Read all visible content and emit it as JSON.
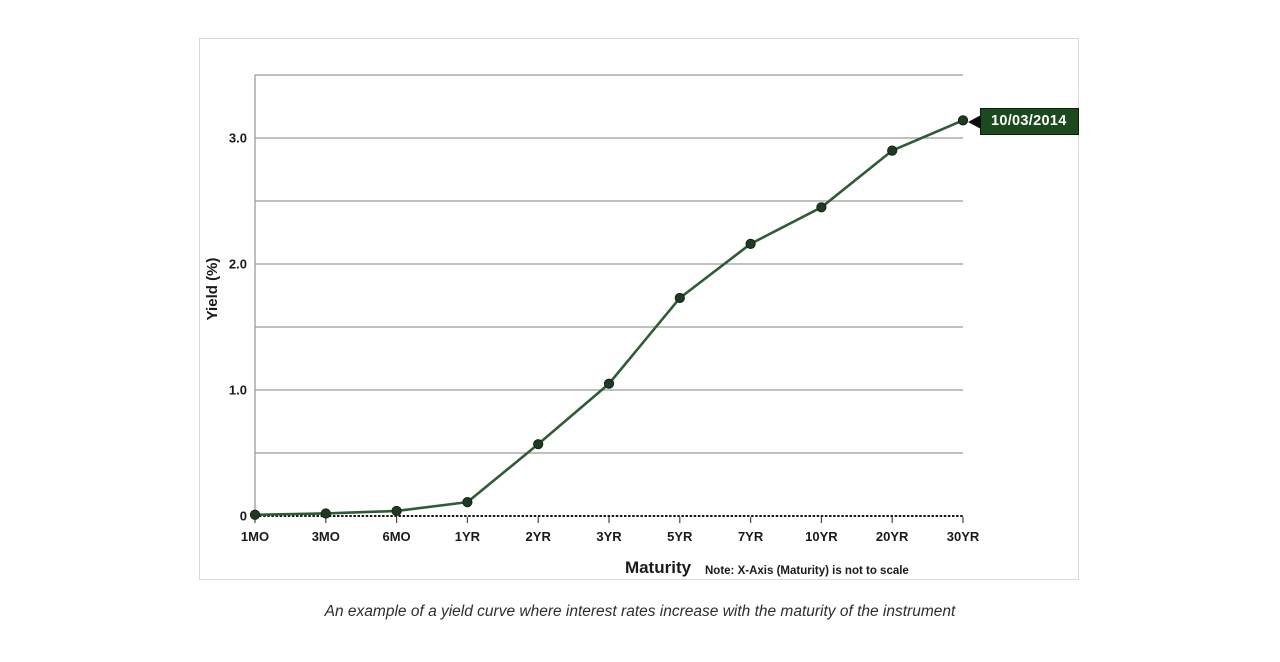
{
  "figure": {
    "caption": "An example of a yield curve where interest rates increase with the maturity of the instrument"
  },
  "chart_data": {
    "type": "line",
    "title": "",
    "xlabel": "Maturity",
    "x_note": "Note: X-Axis (Maturity) is not to scale",
    "ylabel": "Yield (%)",
    "categories": [
      "1MO",
      "3MO",
      "6MO",
      "1YR",
      "2YR",
      "3YR",
      "5YR",
      "7YR",
      "10YR",
      "20YR",
      "30YR"
    ],
    "series": [
      {
        "name": "10/03/2014",
        "values": [
          0.01,
          0.02,
          0.04,
          0.11,
          0.57,
          1.05,
          1.73,
          2.16,
          2.45,
          2.9,
          3.14
        ]
      }
    ],
    "annotation": {
      "text": "10/03/2014",
      "attached_to": "30YR"
    },
    "ylim": [
      0,
      3.5
    ],
    "grid_step": 0.5,
    "grid": "on",
    "legend": "none",
    "ytick_values": [
      0,
      1.0,
      2.0,
      3.0
    ],
    "ytick_labels": [
      "0",
      "1.0",
      "2.0",
      "3.0"
    ],
    "colors": {
      "line": "#2d5c35",
      "marker": "#1e3a24",
      "marker_edge": "#12240f",
      "grid": "#9b9b9b",
      "axis": "#1a1a1a",
      "tick_text": "#1a1a1a",
      "annotation_bg": "#1c4a1e",
      "annotation_text": "#ffffff"
    }
  }
}
